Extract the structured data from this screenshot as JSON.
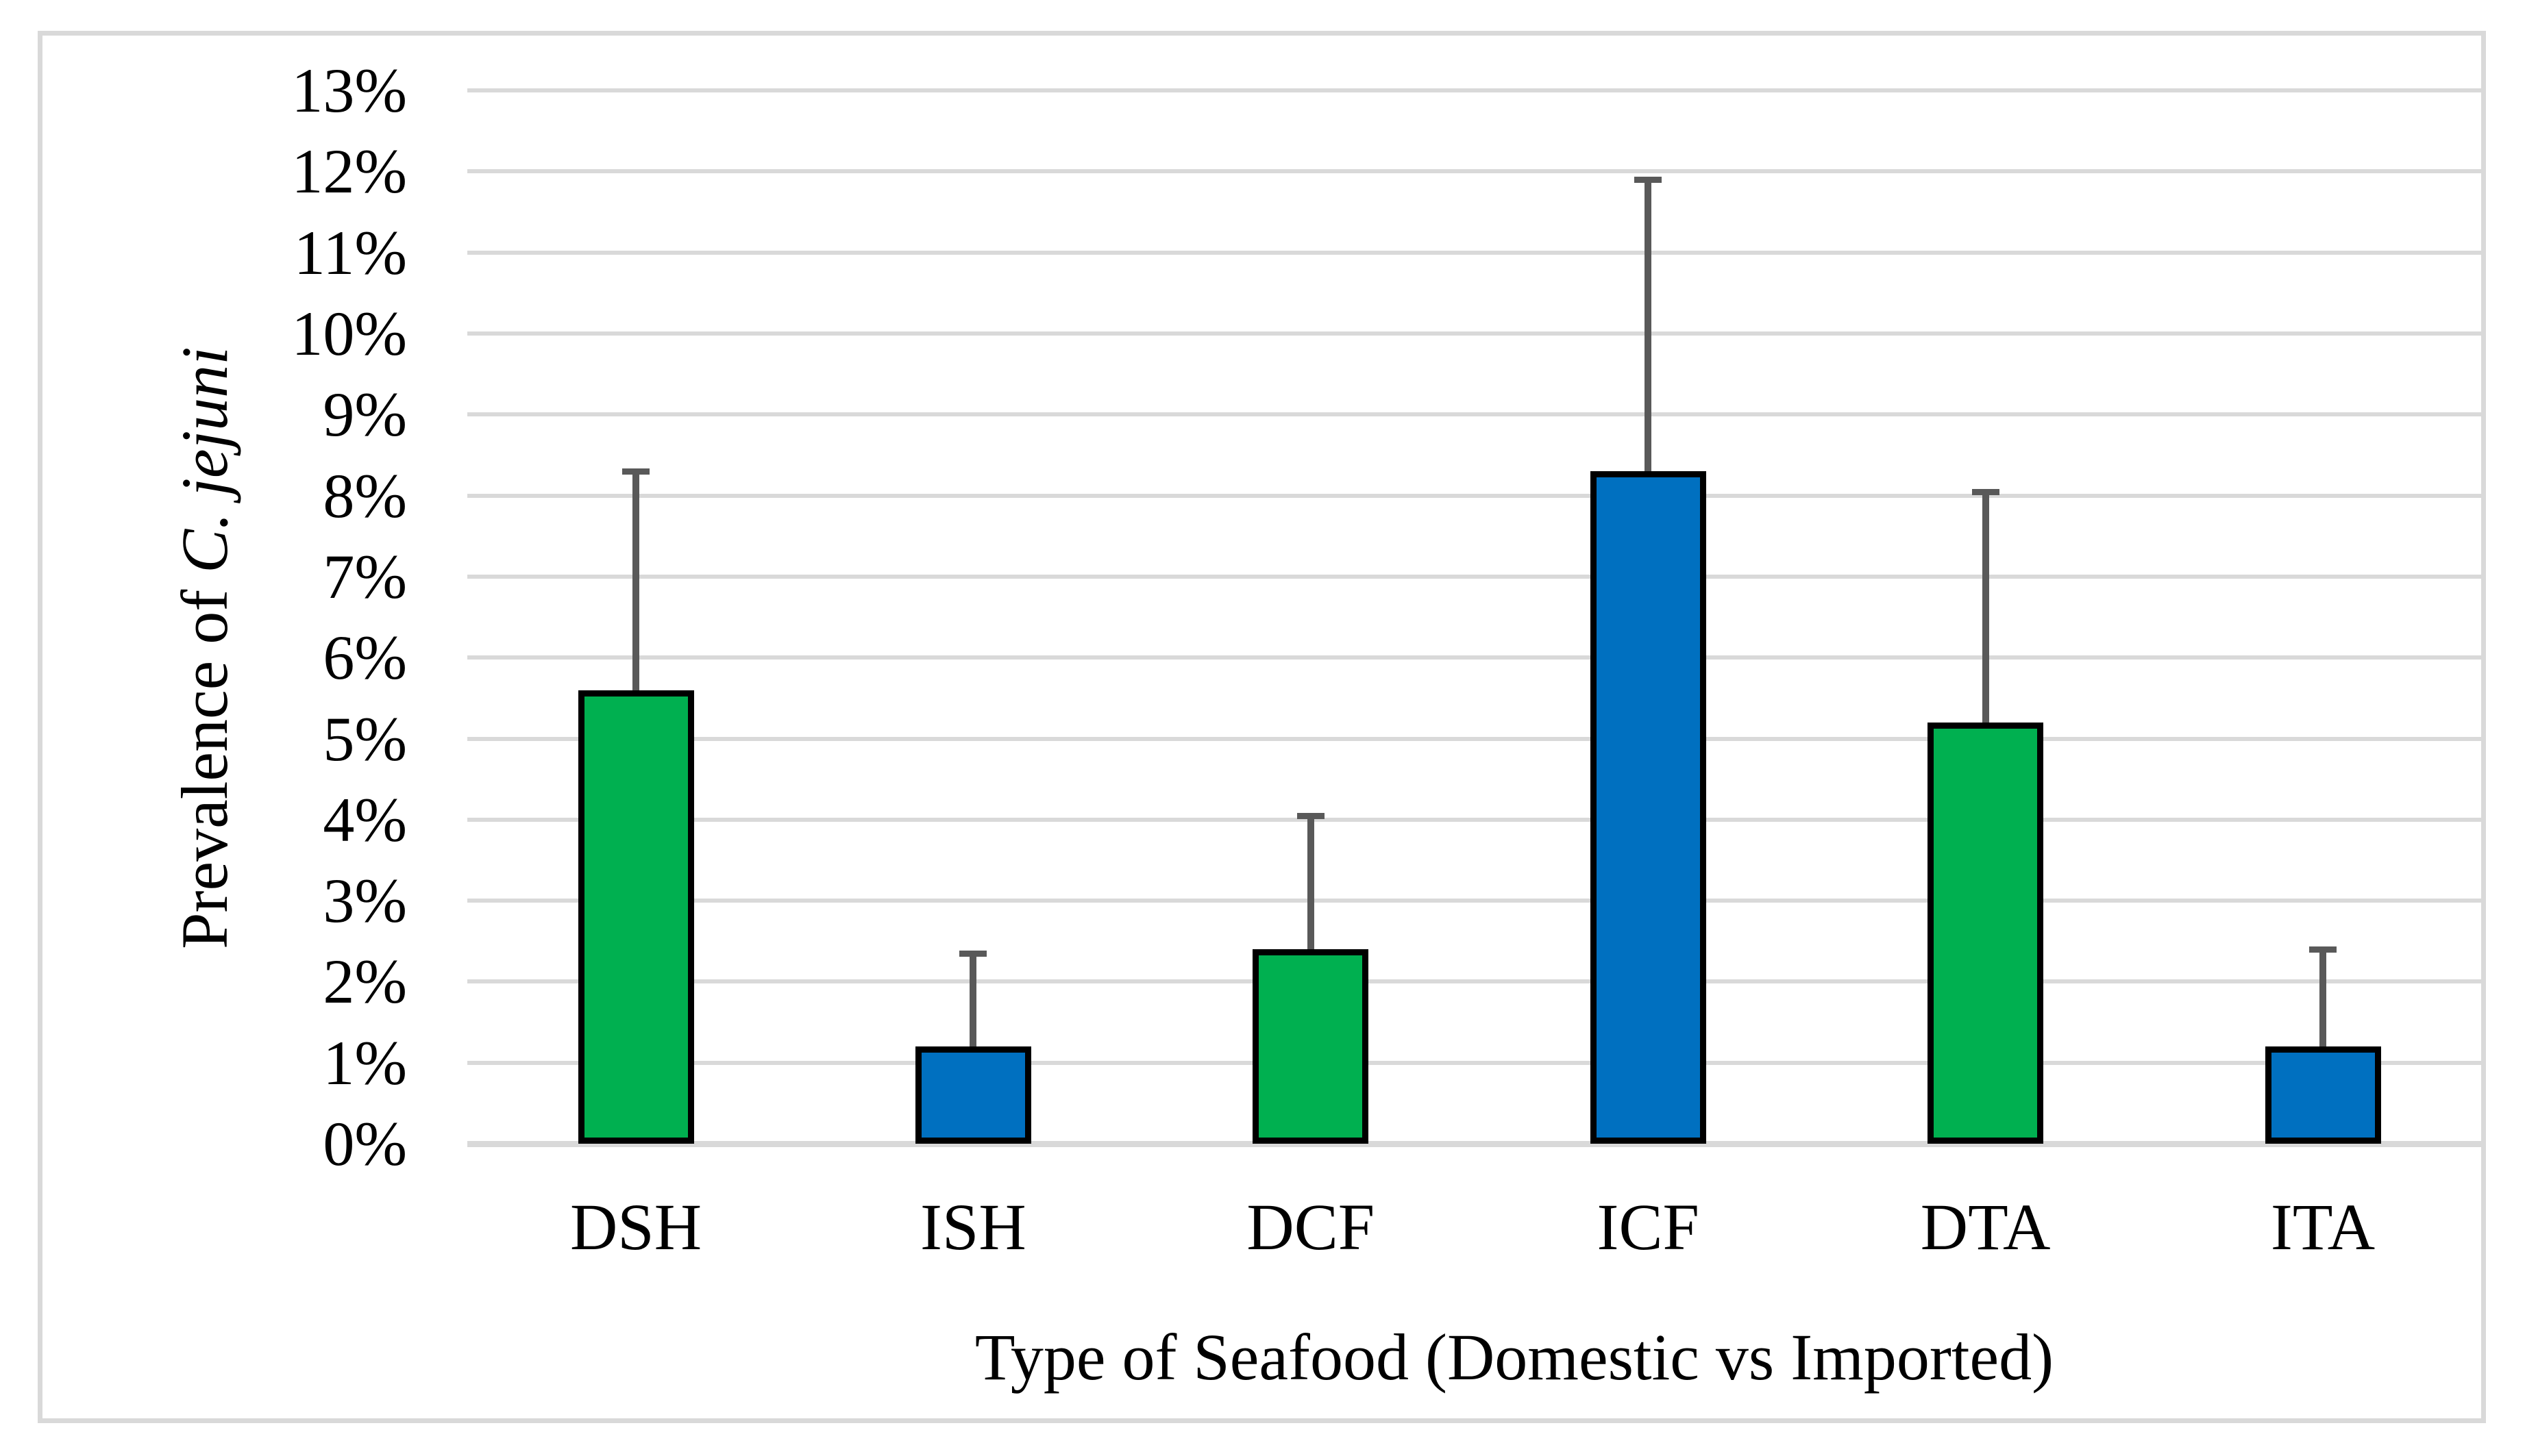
{
  "chart_data": {
    "type": "bar",
    "title": "",
    "categories": [
      "DSH",
      "ISH",
      "DCF",
      "ICF",
      "DTA",
      "ITA"
    ],
    "values": [
      5.6,
      1.2,
      2.4,
      8.3,
      5.2,
      1.2
    ],
    "error_bar_tops": [
      8.3,
      2.35,
      4.05,
      11.9,
      8.05,
      2.4
    ],
    "bar_color_keys": [
      "domestic",
      "imported",
      "domestic",
      "imported",
      "domestic",
      "imported"
    ],
    "xlabel": "Type of Seafood (Domestic vs Imported)",
    "ylabel": "Prevalence of C. jejuni",
    "ylabel_regular_part": "Prevalence of ",
    "ylabel_italic_part": "C. jejuni",
    "ylim": [
      0,
      13
    ],
    "ytick_step": 1,
    "ytick_labels": [
      "0%",
      "1%",
      "2%",
      "3%",
      "4%",
      "5%",
      "6%",
      "7%",
      "8%",
      "9%",
      "10%",
      "11%",
      "12%",
      "13%"
    ],
    "grid": true,
    "legend_position": "none",
    "colors": {
      "domestic": "#00B050",
      "imported": "#0070C0",
      "bar_outline": "#000000",
      "error_bar": "#595959",
      "gridline": "#D9D9D9",
      "frame_border": "#D9D9D9",
      "background": "#FFFFFF"
    }
  }
}
